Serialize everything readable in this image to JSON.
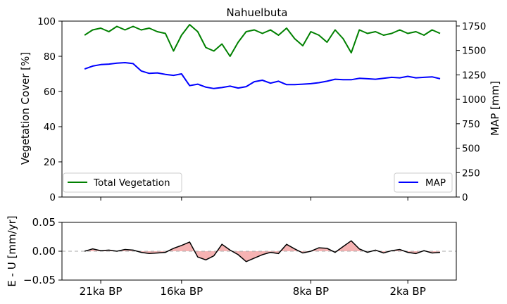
{
  "chart_data": [
    {
      "type": "line",
      "title": "Nahuelbuta",
      "ylabel": "Vegetation Cover [%]",
      "y2label": "MAP [mm]",
      "xlabel": "",
      "x_unit": "ka BP",
      "xlim": [
        23.4,
        -1.0
      ],
      "ylim": [
        0,
        100
      ],
      "y2lim": [
        0,
        1800
      ],
      "yticks": [
        0,
        20,
        40,
        60,
        80,
        100
      ],
      "y2ticks": [
        0,
        250,
        500,
        750,
        1000,
        1250,
        1500,
        1750
      ],
      "legend": [
        {
          "label": "Total Vegetation",
          "placement": "lower-left",
          "color": "#008000"
        },
        {
          "label": "MAP",
          "placement": "lower-right",
          "color": "#0000ff"
        }
      ],
      "series": [
        {
          "name": "Total Vegetation",
          "axis": "left",
          "color": "#008000",
          "x": [
            22.0,
            21.5,
            21.0,
            20.5,
            20.0,
            19.5,
            19.0,
            18.5,
            18.0,
            17.5,
            17.0,
            16.5,
            16.0,
            15.5,
            15.0,
            14.5,
            14.0,
            13.5,
            13.0,
            12.5,
            12.0,
            11.5,
            11.0,
            10.5,
            10.0,
            9.5,
            9.0,
            8.5,
            8.0,
            7.5,
            7.0,
            6.5,
            6.0,
            5.5,
            5.0,
            4.5,
            4.0,
            3.5,
            3.0,
            2.5,
            2.0,
            1.5,
            1.0,
            0.5,
            0.0
          ],
          "values": [
            92,
            95,
            96,
            94,
            97,
            95,
            97,
            95,
            96,
            94,
            93,
            83,
            92,
            98,
            94,
            85,
            83,
            87,
            80,
            88,
            94,
            95,
            93,
            95,
            92,
            96,
            90,
            86,
            94,
            92,
            88,
            95,
            90,
            82,
            95,
            93,
            94,
            92,
            93,
            95,
            93,
            94,
            92,
            95,
            93
          ]
        },
        {
          "name": "MAP",
          "axis": "right",
          "color": "#0000ff",
          "x": [
            22.0,
            21.5,
            21.0,
            20.5,
            20.0,
            19.5,
            19.0,
            18.5,
            18.0,
            17.5,
            17.0,
            16.5,
            16.0,
            15.5,
            15.0,
            14.5,
            14.0,
            13.5,
            13.0,
            12.5,
            12.0,
            11.5,
            11.0,
            10.5,
            10.0,
            9.5,
            9.0,
            8.5,
            8.0,
            7.5,
            7.0,
            6.5,
            6.0,
            5.5,
            5.0,
            4.5,
            4.0,
            3.5,
            3.0,
            2.5,
            2.0,
            1.5,
            1.0,
            0.5,
            0.0
          ],
          "values": [
            1310,
            1340,
            1355,
            1360,
            1370,
            1375,
            1365,
            1290,
            1265,
            1270,
            1255,
            1245,
            1260,
            1140,
            1155,
            1125,
            1110,
            1120,
            1135,
            1115,
            1130,
            1180,
            1195,
            1165,
            1185,
            1150,
            1150,
            1155,
            1160,
            1170,
            1185,
            1205,
            1200,
            1200,
            1215,
            1210,
            1205,
            1215,
            1225,
            1220,
            1235,
            1220,
            1225,
            1230,
            1210
          ]
        }
      ]
    },
    {
      "type": "area",
      "ylabel": "E - U [mm/yr]",
      "xlabel": "",
      "x_unit": "ka BP",
      "xlim": [
        23.4,
        -1.0
      ],
      "ylim": [
        -0.05,
        0.05
      ],
      "yticks": [
        -0.05,
        0.0,
        0.05
      ],
      "ytick_labels": [
        "−0.05",
        "0.00",
        "0.05"
      ],
      "xticks": [
        21,
        16,
        8,
        2
      ],
      "xtick_labels": [
        "21ka BP",
        "16ka BP",
        "8ka BP",
        "2ka BP"
      ],
      "reference_line": 0.0,
      "fill_color": "#f08080",
      "series": [
        {
          "color": "#000000",
          "x": [
            22.0,
            21.5,
            21.0,
            20.5,
            20.0,
            19.5,
            19.0,
            18.5,
            18.0,
            17.5,
            17.0,
            16.5,
            16.0,
            15.5,
            15.0,
            14.5,
            14.0,
            13.5,
            13.0,
            12.5,
            12.0,
            11.5,
            11.0,
            10.5,
            10.0,
            9.5,
            9.0,
            8.5,
            8.0,
            7.5,
            7.0,
            6.5,
            6.0,
            5.5,
            5.0,
            4.5,
            4.0,
            3.5,
            3.0,
            2.5,
            2.0,
            1.5,
            1.0,
            0.5,
            0.0
          ],
          "values": [
            0.0,
            0.004,
            0.001,
            0.002,
            0.0,
            0.003,
            0.002,
            -0.002,
            -0.004,
            -0.003,
            -0.002,
            0.005,
            0.01,
            0.016,
            -0.01,
            -0.015,
            -0.008,
            0.012,
            0.002,
            -0.006,
            -0.018,
            -0.012,
            -0.006,
            -0.002,
            -0.004,
            0.012,
            0.004,
            -0.003,
            0.0,
            0.006,
            0.005,
            -0.002,
            0.008,
            0.018,
            0.004,
            -0.002,
            0.002,
            -0.003,
            0.001,
            0.003,
            -0.002,
            -0.004,
            0.001,
            -0.003,
            -0.002
          ]
        }
      ]
    }
  ]
}
